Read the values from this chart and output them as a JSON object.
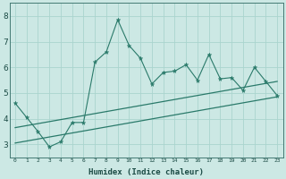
{
  "xlabel": "Humidex (Indice chaleur)",
  "x_values": [
    0,
    1,
    2,
    3,
    4,
    5,
    6,
    7,
    8,
    9,
    10,
    11,
    12,
    13,
    14,
    15,
    16,
    17,
    18,
    19,
    20,
    21,
    22,
    23
  ],
  "main_line": [
    4.6,
    4.05,
    3.5,
    2.9,
    3.1,
    3.85,
    3.85,
    6.2,
    6.6,
    7.85,
    6.85,
    6.35,
    5.35,
    5.8,
    5.85,
    6.1,
    5.5,
    6.5,
    5.55,
    5.6,
    5.1,
    6.0,
    5.45,
    4.9
  ],
  "line_color": "#2a7a6a",
  "band1_x0": 0,
  "band1_y0": 3.65,
  "band1_x1": 23,
  "band1_y1": 5.45,
  "band2_x0": 0,
  "band2_y0": 3.05,
  "band2_x1": 23,
  "band2_y1": 4.85,
  "ylim": [
    2.5,
    8.5
  ],
  "xlim": [
    -0.5,
    23.5
  ],
  "yticks": [
    3,
    4,
    5,
    6,
    7,
    8
  ],
  "xticks": [
    0,
    1,
    2,
    3,
    4,
    5,
    6,
    7,
    8,
    9,
    10,
    11,
    12,
    13,
    14,
    15,
    16,
    17,
    18,
    19,
    20,
    21,
    22,
    23
  ],
  "bg_color": "#cce8e4",
  "grid_color": "#aad4ce",
  "text_color": "#1a4a44"
}
